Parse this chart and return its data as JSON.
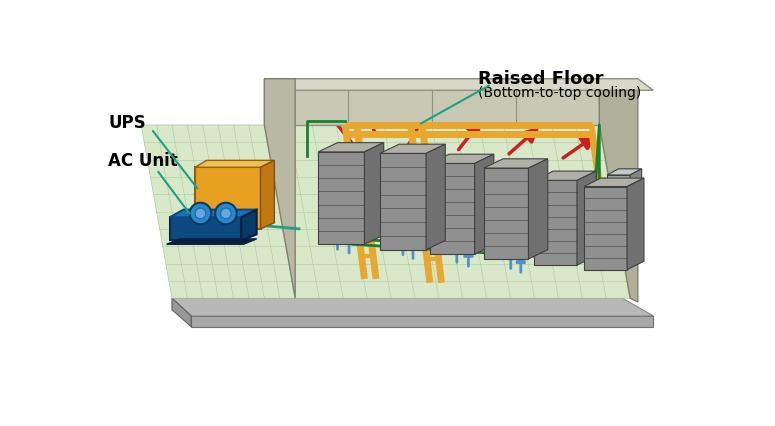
{
  "bg_color": "#ffffff",
  "wall_color": "#c8c8b4",
  "wall_side_color": "#b0b09a",
  "wall_top_color": "#d8d8c8",
  "floor_color": "#d8e8c8",
  "floor_grid": "#aec8a0",
  "floor_base_top": "#b8b8b8",
  "floor_base_side": "#989898",
  "floor_base_front": "#a8a8a8",
  "server_front": "#909090",
  "server_top": "#b0b0a8",
  "server_side": "#707070",
  "server_dark": "#505050",
  "ac_top": "#1a72b8",
  "ac_front": "#0e4a80",
  "ac_side": "#0a3a68",
  "fan_outer": "#2a88cc",
  "fan_inner": "#60aae0",
  "ups_front": "#e8a020",
  "ups_top": "#f0c050",
  "ups_side": "#c07810",
  "cable_color": "#e8a830",
  "green_line": "#1a8030",
  "blue_arrow": "#5090d0",
  "red_arrow": "#cc2020",
  "teal_line": "#20a080",
  "label_color": "#000000",
  "label_ac": "AC Unit",
  "label_ups": "UPS",
  "label_floor": "Raised Floor",
  "label_floor_sub": "(Bottom-to-top cooling)"
}
